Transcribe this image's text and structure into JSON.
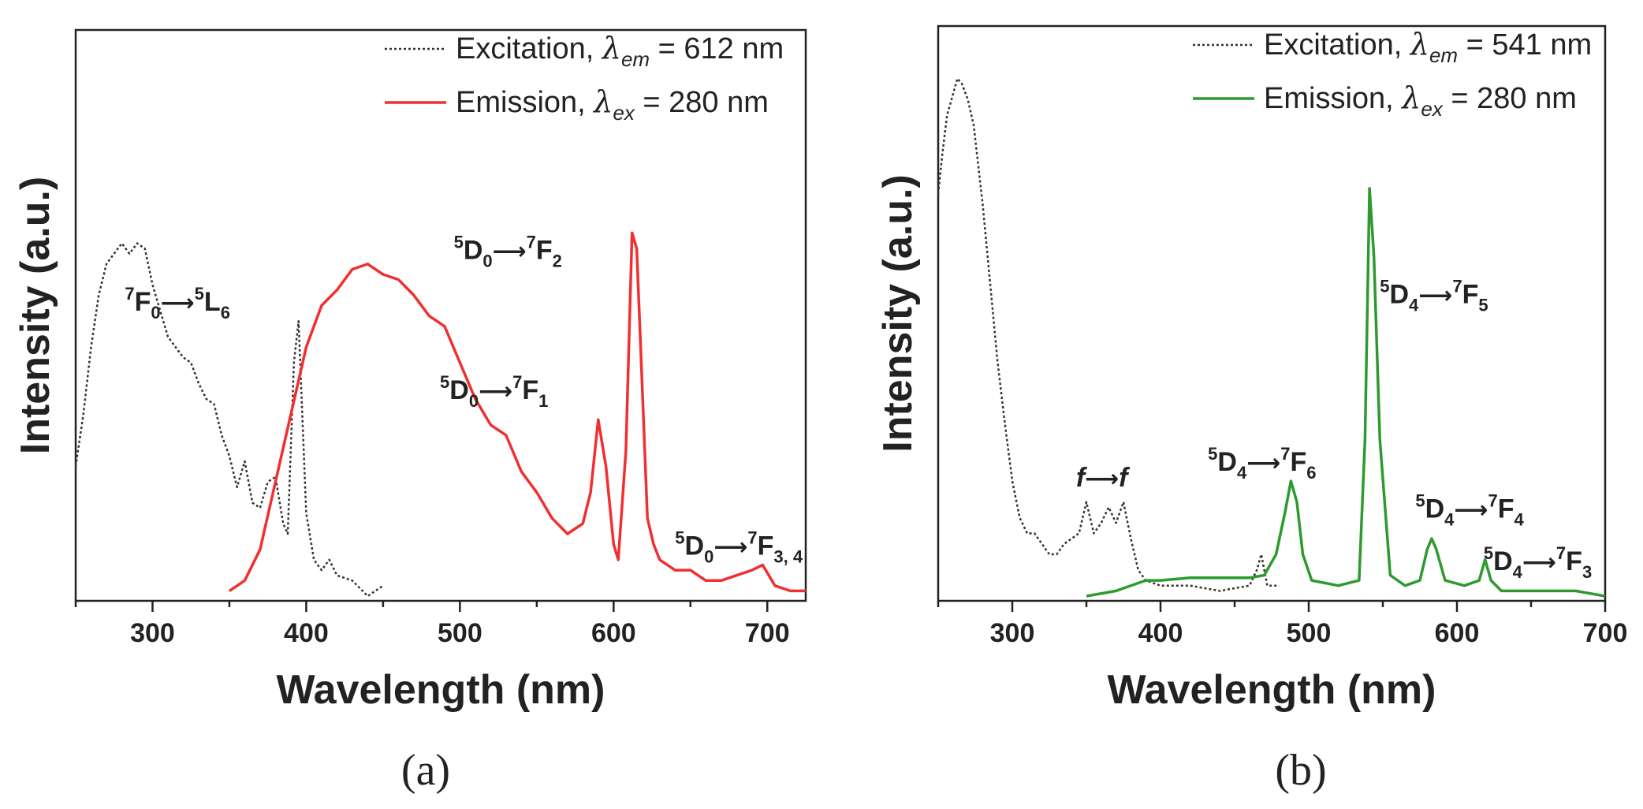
{
  "chart_data": [
    {
      "type": "line",
      "panel_label": "(a)",
      "xlabel": "Wavelength (nm)",
      "ylabel": "Intensity (a.u.)",
      "xlim": [
        250,
        725
      ],
      "ylim": [
        0,
        1
      ],
      "xticks": [
        300,
        400,
        500,
        600,
        700
      ],
      "y_tick_labels": "none",
      "legend_position": "top-right",
      "series": [
        {
          "name": "Excitation, λem = 612 nm",
          "legend_prefix": "Excitation, ",
          "legend_subscript": "em",
          "legend_suffix": " = 612 nm",
          "style": "dotted",
          "color": "#333333",
          "x": [
            250,
            255,
            260,
            265,
            270,
            275,
            280,
            285,
            290,
            295,
            300,
            305,
            310,
            315,
            320,
            325,
            330,
            335,
            340,
            345,
            350,
            355,
            360,
            365,
            370,
            375,
            380,
            385,
            388,
            392,
            395,
            400,
            405,
            410,
            415,
            420,
            430,
            440,
            445,
            450
          ],
          "y": [
            0.25,
            0.35,
            0.48,
            0.58,
            0.64,
            0.66,
            0.68,
            0.66,
            0.68,
            0.67,
            0.6,
            0.55,
            0.5,
            0.48,
            0.46,
            0.45,
            0.41,
            0.38,
            0.37,
            0.31,
            0.27,
            0.21,
            0.26,
            0.18,
            0.17,
            0.22,
            0.23,
            0.14,
            0.12,
            0.45,
            0.53,
            0.16,
            0.07,
            0.05,
            0.07,
            0.04,
            0.03,
            0.0,
            0.01,
            0.02
          ]
        },
        {
          "name": "Emission, λex = 280 nm",
          "legend_prefix": "Emission, ",
          "legend_subscript": "ex",
          "legend_suffix": " = 280 nm",
          "style": "solid",
          "color": "#f03030",
          "x": [
            350,
            360,
            370,
            380,
            390,
            400,
            410,
            420,
            430,
            440,
            450,
            460,
            470,
            480,
            490,
            500,
            510,
            520,
            530,
            540,
            550,
            560,
            570,
            575,
            580,
            585,
            590,
            595,
            600,
            603,
            608,
            612,
            615,
            618,
            622,
            626,
            630,
            640,
            650,
            660,
            670,
            680,
            690,
            697,
            705,
            715,
            725
          ],
          "y": [
            0.01,
            0.03,
            0.09,
            0.22,
            0.35,
            0.48,
            0.56,
            0.59,
            0.63,
            0.64,
            0.62,
            0.61,
            0.58,
            0.54,
            0.52,
            0.45,
            0.38,
            0.33,
            0.31,
            0.24,
            0.2,
            0.15,
            0.12,
            0.13,
            0.14,
            0.2,
            0.34,
            0.25,
            0.1,
            0.07,
            0.28,
            0.7,
            0.67,
            0.45,
            0.15,
            0.1,
            0.07,
            0.05,
            0.05,
            0.03,
            0.03,
            0.04,
            0.05,
            0.06,
            0.02,
            0.01,
            0.01
          ]
        }
      ],
      "annotations": [
        {
          "pre": "7",
          "a": "F",
          "a_sub": "0",
          "b_pre": "5",
          "b": "L",
          "b_sub": "6",
          "x": 282,
          "y": 0.55
        },
        {
          "pre": "5",
          "a": "D",
          "a_sub": "0",
          "b_pre": "7",
          "b": "F",
          "b_sub": "2",
          "x": 496,
          "y": 0.65
        },
        {
          "pre": "5",
          "a": "D",
          "a_sub": "0",
          "b_pre": "7",
          "b": "F",
          "b_sub": "1",
          "x": 487,
          "y": 0.38
        },
        {
          "pre": "5",
          "a": "D",
          "a_sub": "0",
          "b_pre": "7",
          "b": "F",
          "b_sub": "3, 4",
          "x": 640,
          "y": 0.08
        }
      ]
    },
    {
      "type": "line",
      "panel_label": "(b)",
      "xlabel": "Wavelength (nm)",
      "ylabel": "Intensity (a.u.)",
      "xlim": [
        250,
        700
      ],
      "ylim": [
        0,
        1
      ],
      "xticks": [
        300,
        400,
        500,
        600,
        700
      ],
      "y_tick_labels": "none",
      "legend_position": "top-right",
      "series": [
        {
          "name": "Excitation, λem = 541 nm",
          "legend_prefix": "Excitation, ",
          "legend_subscript": "em",
          "legend_suffix": " = 541 nm",
          "style": "dotted",
          "color": "#333333",
          "x": [
            250,
            253,
            256,
            260,
            263,
            266,
            270,
            274,
            280,
            285,
            290,
            295,
            300,
            305,
            310,
            315,
            320,
            325,
            330,
            335,
            340,
            345,
            350,
            355,
            360,
            365,
            370,
            375,
            380,
            385,
            390,
            400,
            420,
            440,
            460,
            465,
            468,
            472,
            480
          ],
          "y": [
            0.77,
            0.85,
            0.92,
            0.96,
            0.99,
            0.98,
            0.95,
            0.9,
            0.75,
            0.6,
            0.45,
            0.33,
            0.22,
            0.15,
            0.12,
            0.12,
            0.1,
            0.08,
            0.08,
            0.1,
            0.11,
            0.12,
            0.18,
            0.12,
            0.14,
            0.17,
            0.14,
            0.18,
            0.11,
            0.05,
            0.03,
            0.02,
            0.02,
            0.01,
            0.02,
            0.05,
            0.08,
            0.02,
            0.02
          ]
        },
        {
          "name": "Emission, λex = 280 nm",
          "legend_prefix": "Emission, ",
          "legend_subscript": "ex",
          "legend_suffix": " = 280 nm",
          "style": "solid",
          "color": "#2e9a2e",
          "x": [
            350,
            370,
            390,
            400,
            420,
            440,
            460,
            470,
            478,
            484,
            488,
            492,
            496,
            502,
            520,
            534,
            538,
            541,
            544,
            548,
            555,
            565,
            575,
            580,
            583,
            586,
            592,
            605,
            615,
            619,
            623,
            630,
            650,
            680,
            700
          ],
          "y": [
            0.0,
            0.01,
            0.03,
            0.03,
            0.035,
            0.035,
            0.035,
            0.04,
            0.08,
            0.16,
            0.22,
            0.18,
            0.08,
            0.03,
            0.02,
            0.03,
            0.3,
            0.78,
            0.65,
            0.3,
            0.04,
            0.02,
            0.03,
            0.09,
            0.11,
            0.09,
            0.03,
            0.02,
            0.03,
            0.07,
            0.03,
            0.01,
            0.01,
            0.01,
            0.0
          ]
        }
      ],
      "annotations": [
        {
          "pre": "",
          "a": "f",
          "a_sub": "",
          "b_pre": "",
          "b": "f",
          "b_sub": "",
          "italic": true,
          "x": 343,
          "y": 0.21
        },
        {
          "pre": "5",
          "a": "D",
          "a_sub": "4",
          "b_pre": "7",
          "b": "F",
          "b_sub": "6",
          "x": 432,
          "y": 0.24
        },
        {
          "pre": "5",
          "a": "D",
          "a_sub": "4",
          "b_pre": "7",
          "b": "F",
          "b_sub": "5",
          "x": 548,
          "y": 0.56
        },
        {
          "pre": "5",
          "a": "D",
          "a_sub": "4",
          "b_pre": "7",
          "b": "F",
          "b_sub": "4",
          "x": 572,
          "y": 0.15
        },
        {
          "pre": "5",
          "a": "D",
          "a_sub": "4",
          "b_pre": "7",
          "b": "F",
          "b_sub": "3",
          "x": 618,
          "y": 0.05
        }
      ]
    }
  ]
}
